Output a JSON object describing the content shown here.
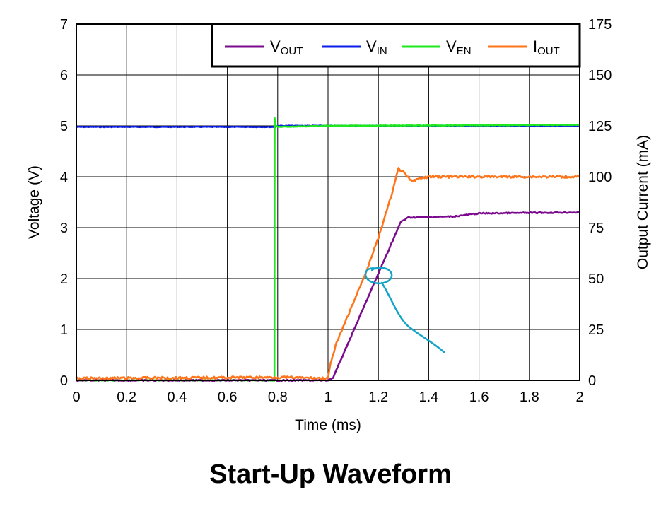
{
  "figure_title": "Start-Up Waveform",
  "chart_data": {
    "type": "line",
    "xlabel": "Time (ms)",
    "ylabel_left": "Voltage (V)",
    "ylabel_right": "Output Current (mA)",
    "xlim": [
      0,
      2
    ],
    "ylim_left": [
      0,
      7
    ],
    "ylim_right": [
      0,
      175
    ],
    "x_ticks": [
      "0",
      "0.2",
      "0.4",
      "0.6",
      "0.8",
      "1",
      "1.2",
      "1.4",
      "1.6",
      "1.8",
      "2"
    ],
    "y_left_ticks": [
      "0",
      "1",
      "2",
      "3",
      "4",
      "5",
      "6",
      "7"
    ],
    "y_right_ticks": [
      "0",
      "25",
      "50",
      "75",
      "100",
      "125",
      "150",
      "175"
    ],
    "grid": true,
    "legend_position": "top-right",
    "series": [
      {
        "name": "VOUT",
        "name_main": "V",
        "name_sub": "OUT",
        "color": "#7B0A8E",
        "axis": "left",
        "x": [
          0,
          1.0,
          1.02,
          1.29,
          1.32,
          1.5,
          1.6,
          2.0
        ],
        "y": [
          0,
          0,
          0.05,
          3.12,
          3.2,
          3.22,
          3.28,
          3.3
        ]
      },
      {
        "name": "VIN",
        "name_main": "V",
        "name_sub": "IN",
        "color": "#0A1EE8",
        "axis": "left",
        "x": [
          0,
          0.79,
          0.8,
          2.0
        ],
        "y": [
          4.98,
          4.98,
          5.0,
          5.0
        ]
      },
      {
        "name": "VEN",
        "name_main": "V",
        "name_sub": "EN",
        "color": "#1EE81E",
        "axis": "left",
        "x": [
          0,
          0.787,
          0.788,
          0.792,
          0.8,
          1.0,
          2.0
        ],
        "y": [
          0,
          0,
          5.15,
          5.0,
          4.98,
          5.0,
          5.02
        ]
      },
      {
        "name": "IOUT",
        "name_main": "I",
        "name_sub": "OUT",
        "color": "#FF7418",
        "axis": "right",
        "x": [
          0,
          0.8,
          1.0,
          1.01,
          1.03,
          1.1,
          1.15,
          1.2,
          1.25,
          1.28,
          1.3,
          1.33,
          1.4,
          2.0
        ],
        "y": [
          1,
          1.5,
          1,
          8,
          17,
          38,
          53,
          70,
          90,
          104,
          102,
          98,
          100,
          100
        ]
      }
    ]
  }
}
